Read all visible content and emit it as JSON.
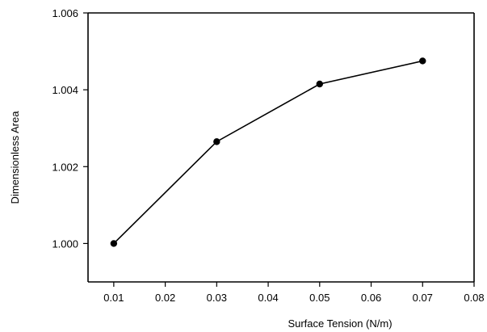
{
  "chart_data": {
    "type": "line",
    "title": "",
    "xlabel": "Surface Tension (N/m)",
    "ylabel": "Dimensionless Area",
    "xlim": [
      0.005,
      0.08
    ],
    "ylim": [
      0.999,
      1.006
    ],
    "xticks": [
      0.01,
      0.02,
      0.03,
      0.04,
      0.05,
      0.06,
      0.07,
      0.08
    ],
    "xtick_labels": [
      "0.01",
      "0.02",
      "0.03",
      "0.04",
      "0.05",
      "0.06",
      "0.07",
      "0.08"
    ],
    "yticks": [
      1.0,
      1.002,
      1.004,
      1.006
    ],
    "ytick_labels": [
      "1.000",
      "1.002",
      "1.004",
      "1.006"
    ],
    "grid": false,
    "series": [
      {
        "x": [
          0.01,
          0.03,
          0.05,
          0.07
        ],
        "y": [
          1.0,
          1.00265,
          1.00415,
          1.00475
        ],
        "color": "#000000",
        "marker": "circle"
      }
    ]
  }
}
